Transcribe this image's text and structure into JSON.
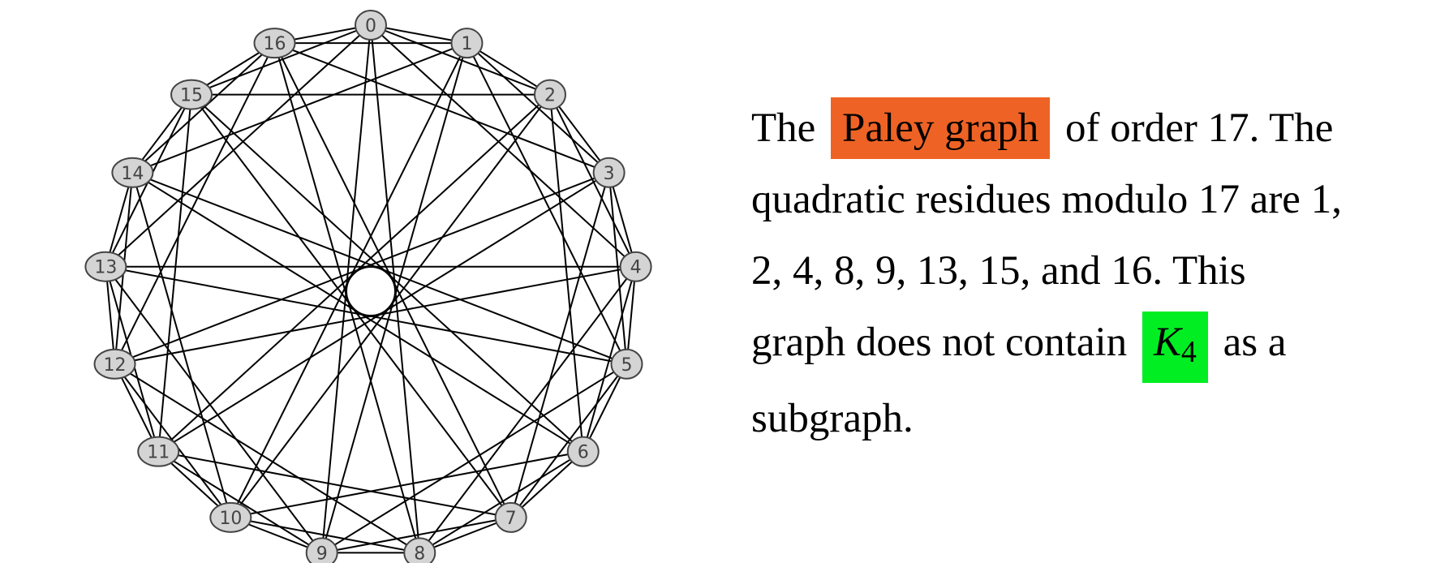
{
  "graph": {
    "order": 17,
    "quadratic_residues": [
      1,
      2,
      4,
      8,
      9,
      13,
      15,
      16
    ],
    "vertex_labels": [
      "0",
      "1",
      "2",
      "3",
      "4",
      "5",
      "6",
      "7",
      "8",
      "9",
      "10",
      "11",
      "12",
      "13",
      "14",
      "15",
      "16"
    ]
  },
  "caption": {
    "lead": "The",
    "highlight": "Paley graph",
    "line1_rest": "of order 17. The",
    "line2": "quadratic residues modulo 17 are 1,",
    "line3": "2, 4, 8, 9, 13, 15, and 16. This",
    "line4_start": "graph does not contain",
    "k_letter": "K",
    "k_sub": "4",
    "line4_end": "as a",
    "line5": "subgraph."
  },
  "colors": {
    "highlight_orange": "#ee6325",
    "highlight_green": "#00ee22",
    "node_fill": "#d4d4d4"
  }
}
